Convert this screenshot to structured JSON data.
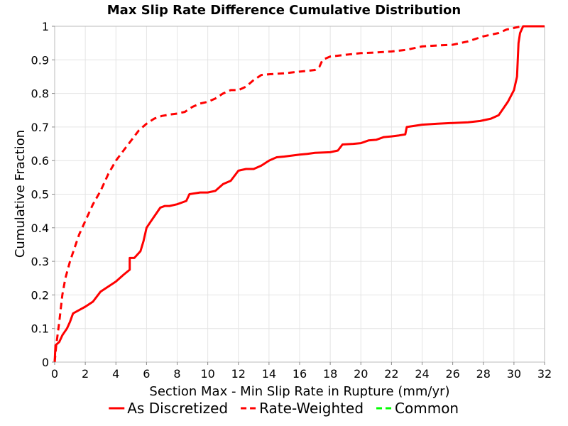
{
  "chart_data": {
    "type": "line",
    "title": "Max Slip Rate Difference Cumulative Distribution",
    "xlabel": "Section Max - Min Slip Rate in Rupture (mm/yr)",
    "ylabel": "Cumulative Fraction",
    "xlim": [
      0,
      32
    ],
    "ylim": [
      0,
      1
    ],
    "x_ticks": [
      "0",
      "2",
      "4",
      "6",
      "8",
      "10",
      "12",
      "14",
      "16",
      "18",
      "20",
      "22",
      "24",
      "26",
      "28",
      "30",
      "32"
    ],
    "y_ticks": [
      "0",
      "0.1",
      "0.2",
      "0.3",
      "0.4",
      "0.5",
      "0.6",
      "0.7",
      "0.8",
      "0.9",
      "1"
    ],
    "grid": true,
    "legend_position": "bottom",
    "series": [
      {
        "name": "As Discretized",
        "color": "#ff0000",
        "style": "solid",
        "points": [
          [
            0,
            0
          ],
          [
            0.05,
            0.05
          ],
          [
            0.3,
            0.06
          ],
          [
            0.5,
            0.08
          ],
          [
            0.8,
            0.1
          ],
          [
            1.0,
            0.12
          ],
          [
            1.2,
            0.145
          ],
          [
            1.6,
            0.155
          ],
          [
            2.0,
            0.165
          ],
          [
            2.5,
            0.18
          ],
          [
            3.0,
            0.21
          ],
          [
            3.5,
            0.225
          ],
          [
            4.0,
            0.24
          ],
          [
            4.5,
            0.26
          ],
          [
            4.9,
            0.275
          ],
          [
            4.9,
            0.31
          ],
          [
            5.2,
            0.31
          ],
          [
            5.6,
            0.33
          ],
          [
            5.8,
            0.36
          ],
          [
            6.0,
            0.4
          ],
          [
            6.3,
            0.42
          ],
          [
            6.6,
            0.44
          ],
          [
            6.9,
            0.46
          ],
          [
            7.2,
            0.465
          ],
          [
            7.5,
            0.465
          ],
          [
            8.0,
            0.47
          ],
          [
            8.6,
            0.48
          ],
          [
            8.8,
            0.5
          ],
          [
            9.5,
            0.505
          ],
          [
            10.0,
            0.505
          ],
          [
            10.5,
            0.51
          ],
          [
            11.0,
            0.53
          ],
          [
            11.5,
            0.54
          ],
          [
            12.0,
            0.57
          ],
          [
            12.5,
            0.575
          ],
          [
            13.0,
            0.575
          ],
          [
            13.5,
            0.585
          ],
          [
            14.0,
            0.6
          ],
          [
            14.5,
            0.61
          ],
          [
            15.0,
            0.612
          ],
          [
            16.0,
            0.618
          ],
          [
            16.5,
            0.62
          ],
          [
            17.0,
            0.623
          ],
          [
            18.0,
            0.625
          ],
          [
            18.5,
            0.63
          ],
          [
            18.8,
            0.648
          ],
          [
            19.5,
            0.65
          ],
          [
            20.0,
            0.652
          ],
          [
            20.5,
            0.66
          ],
          [
            21.0,
            0.662
          ],
          [
            21.5,
            0.67
          ],
          [
            22.0,
            0.672
          ],
          [
            22.5,
            0.675
          ],
          [
            22.9,
            0.678
          ],
          [
            23.0,
            0.7
          ],
          [
            24.0,
            0.707
          ],
          [
            25.0,
            0.71
          ],
          [
            26.0,
            0.712
          ],
          [
            27.0,
            0.714
          ],
          [
            27.8,
            0.718
          ],
          [
            28.5,
            0.725
          ],
          [
            29.0,
            0.735
          ],
          [
            29.3,
            0.755
          ],
          [
            29.6,
            0.775
          ],
          [
            30.0,
            0.81
          ],
          [
            30.2,
            0.85
          ],
          [
            30.3,
            0.95
          ],
          [
            30.4,
            0.98
          ],
          [
            30.6,
            1.0
          ],
          [
            32,
            1.0
          ]
        ]
      },
      {
        "name": "Rate-Weighted",
        "color": "#ff0000",
        "style": "dashed",
        "points": [
          [
            0,
            0
          ],
          [
            0.1,
            0.05
          ],
          [
            0.3,
            0.12
          ],
          [
            0.5,
            0.2
          ],
          [
            0.7,
            0.25
          ],
          [
            1.0,
            0.3
          ],
          [
            1.3,
            0.34
          ],
          [
            1.6,
            0.38
          ],
          [
            2.0,
            0.42
          ],
          [
            2.5,
            0.47
          ],
          [
            3.0,
            0.51
          ],
          [
            3.5,
            0.56
          ],
          [
            4.0,
            0.6
          ],
          [
            4.5,
            0.63
          ],
          [
            5.0,
            0.66
          ],
          [
            5.5,
            0.69
          ],
          [
            6.0,
            0.71
          ],
          [
            6.5,
            0.725
          ],
          [
            7.0,
            0.733
          ],
          [
            7.5,
            0.737
          ],
          [
            8.0,
            0.74
          ],
          [
            8.5,
            0.745
          ],
          [
            9.0,
            0.76
          ],
          [
            9.5,
            0.77
          ],
          [
            10.0,
            0.775
          ],
          [
            10.5,
            0.785
          ],
          [
            11.0,
            0.8
          ],
          [
            11.5,
            0.81
          ],
          [
            12.0,
            0.81
          ],
          [
            12.5,
            0.82
          ],
          [
            13.0,
            0.84
          ],
          [
            13.5,
            0.855
          ],
          [
            14.0,
            0.857
          ],
          [
            15.0,
            0.86
          ],
          [
            16.0,
            0.865
          ],
          [
            16.5,
            0.867
          ],
          [
            17.0,
            0.87
          ],
          [
            17.3,
            0.88
          ],
          [
            17.5,
            0.9
          ],
          [
            18.0,
            0.91
          ],
          [
            19.0,
            0.915
          ],
          [
            20.0,
            0.92
          ],
          [
            21.0,
            0.922
          ],
          [
            22.0,
            0.925
          ],
          [
            23.0,
            0.93
          ],
          [
            23.5,
            0.935
          ],
          [
            24.0,
            0.94
          ],
          [
            25.0,
            0.943
          ],
          [
            26.0,
            0.945
          ],
          [
            27.0,
            0.955
          ],
          [
            28.0,
            0.97
          ],
          [
            29.0,
            0.98
          ],
          [
            29.5,
            0.99
          ],
          [
            30.5,
            1.0
          ],
          [
            32,
            1.0
          ]
        ]
      },
      {
        "name": "Common",
        "color": "#00ff00",
        "style": "dashed",
        "points": []
      }
    ]
  }
}
